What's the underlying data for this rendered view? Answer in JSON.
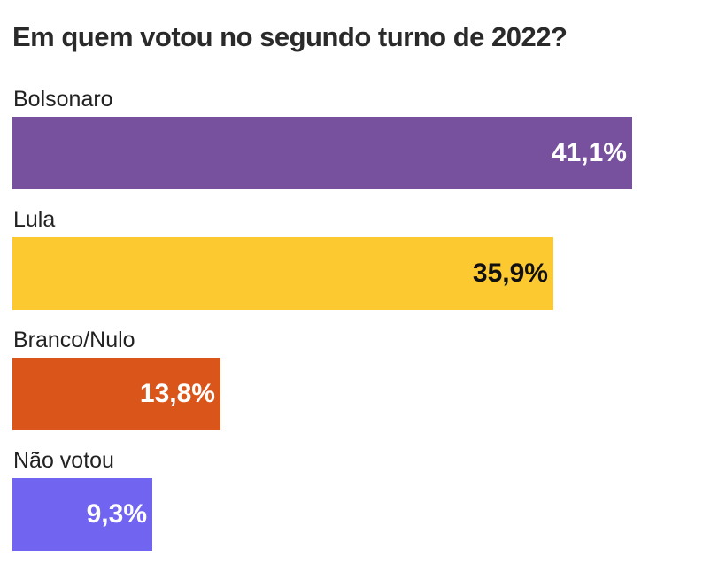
{
  "chart_data": {
    "type": "bar",
    "orientation": "horizontal",
    "title": "Em quem votou no segundo turno de 2022?",
    "categories": [
      "Bolsonaro",
      "Lula",
      "Branco/Nulo",
      "Não votou"
    ],
    "values": [
      41.1,
      35.9,
      13.8,
      9.3
    ],
    "value_labels": [
      "41,1%",
      "35,9%",
      "13,8%",
      "9,3%"
    ],
    "colors": [
      "#77509e",
      "#fdc930",
      "#d9551a",
      "#7064f0"
    ],
    "label_colors": [
      "#ffffff",
      "#111111",
      "#ffffff",
      "#ffffff"
    ],
    "xlim": [
      0,
      41.1
    ],
    "xlabel": "",
    "ylabel": "",
    "grid": false,
    "legend": "none"
  }
}
